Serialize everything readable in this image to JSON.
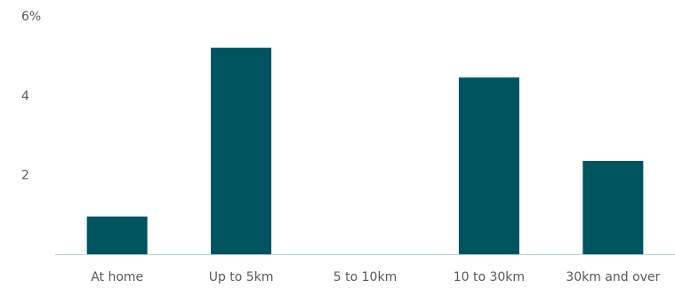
{
  "chart_data": {
    "type": "bar",
    "categories": [
      "At home",
      "Up to 5km",
      "5 to 10km",
      "10 to 30km",
      "30km and over"
    ],
    "values": [
      0.95,
      5.2,
      0,
      4.45,
      2.35
    ],
    "y_tick_labels": [
      "2",
      "4",
      "6%"
    ],
    "y_tick_values": [
      2,
      4,
      6
    ],
    "ylim": [
      0,
      6
    ],
    "grid": false,
    "bar_color": "#00545f",
    "axis_color": "#b9cfe0"
  }
}
